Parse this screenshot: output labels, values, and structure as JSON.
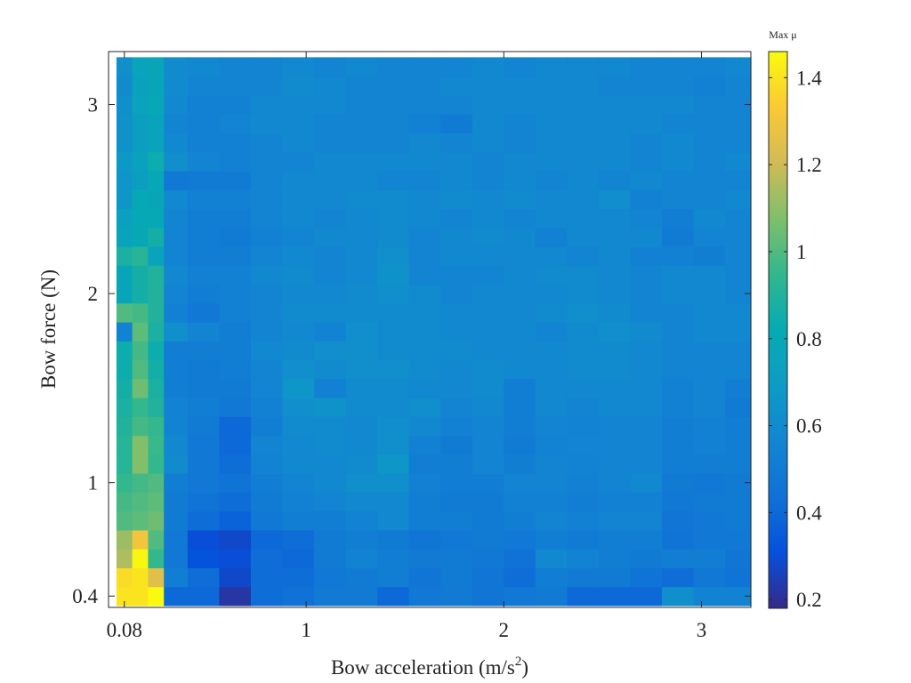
{
  "chart_data": {
    "type": "heatmap",
    "title": "",
    "xlabel": "Bow acceleration (m/s^2)",
    "ylabel": "Bow force (N)",
    "x_ticks": [
      {
        "value": 0.08,
        "label": "0.08"
      },
      {
        "value": 1,
        "label": "1"
      },
      {
        "value": 2,
        "label": "2"
      },
      {
        "value": 3,
        "label": "3"
      }
    ],
    "y_ticks": [
      {
        "value": 0.4,
        "label": "0.4"
      },
      {
        "value": 1,
        "label": "1"
      },
      {
        "value": 2,
        "label": "2"
      },
      {
        "value": 3,
        "label": "3"
      }
    ],
    "xlim": [
      0.0,
      3.25
    ],
    "ylim": [
      0.34,
      3.28
    ],
    "colorbar": {
      "label": "Max μ",
      "min": 0.18,
      "max": 1.46,
      "ticks": [
        {
          "value": 0.2,
          "label": "0.2"
        },
        {
          "value": 0.4,
          "label": "0.4"
        },
        {
          "value": 0.6,
          "label": "0.6"
        },
        {
          "value": 0.8,
          "label": "0.8"
        },
        {
          "value": 1.0,
          "label": "1"
        },
        {
          "value": 1.2,
          "label": "1.2"
        },
        {
          "value": 1.4,
          "label": "1.4"
        }
      ],
      "colormap": "parula"
    },
    "x": [
      0.08,
      0.16,
      0.24,
      0.32,
      0.48,
      0.64,
      0.8,
      0.96,
      1.12,
      1.28,
      1.44,
      1.6,
      1.76,
      1.92,
      2.08,
      2.24,
      2.4,
      2.56,
      2.72,
      2.88,
      3.04,
      3.2
    ],
    "y": [
      0.4,
      0.5,
      0.6,
      0.7,
      0.8,
      0.9,
      1.0,
      1.1,
      1.2,
      1.3,
      1.4,
      1.5,
      1.6,
      1.7,
      1.8,
      1.9,
      2.0,
      2.1,
      2.2,
      2.3,
      2.4,
      2.5,
      2.6,
      2.7,
      2.8,
      2.9,
      3.0,
      3.1,
      3.2
    ],
    "z": [
      [
        1.4,
        1.4,
        1.46,
        0.4,
        0.4,
        0.22,
        0.42,
        0.44,
        0.5,
        0.5,
        0.4,
        0.48,
        0.5,
        0.46,
        0.48,
        0.5,
        0.4,
        0.4,
        0.4,
        0.62,
        0.55,
        0.55
      ],
      [
        1.38,
        1.4,
        1.25,
        0.52,
        0.42,
        0.28,
        0.42,
        0.42,
        0.48,
        0.5,
        0.52,
        0.46,
        0.5,
        0.46,
        0.42,
        0.52,
        0.5,
        0.5,
        0.45,
        0.42,
        0.48,
        0.45
      ],
      [
        1.15,
        1.45,
        0.95,
        0.48,
        0.32,
        0.3,
        0.42,
        0.4,
        0.5,
        0.55,
        0.52,
        0.5,
        0.5,
        0.48,
        0.44,
        0.58,
        0.55,
        0.52,
        0.5,
        0.52,
        0.52,
        0.46
      ],
      [
        1.12,
        1.3,
        1.0,
        0.48,
        0.3,
        0.28,
        0.4,
        0.42,
        0.5,
        0.52,
        0.5,
        0.46,
        0.48,
        0.5,
        0.48,
        0.52,
        0.5,
        0.52,
        0.52,
        0.45,
        0.48,
        0.48
      ],
      [
        1.0,
        1.02,
        1.05,
        0.5,
        0.42,
        0.38,
        0.48,
        0.52,
        0.52,
        0.55,
        0.58,
        0.52,
        0.52,
        0.5,
        0.52,
        0.56,
        0.54,
        0.56,
        0.56,
        0.46,
        0.48,
        0.5
      ],
      [
        0.98,
        1.0,
        1.02,
        0.5,
        0.45,
        0.42,
        0.5,
        0.54,
        0.56,
        0.58,
        0.58,
        0.52,
        0.5,
        0.5,
        0.54,
        0.54,
        0.52,
        0.54,
        0.54,
        0.48,
        0.5,
        0.5
      ],
      [
        0.95,
        0.98,
        1.0,
        0.52,
        0.48,
        0.45,
        0.52,
        0.56,
        0.58,
        0.62,
        0.62,
        0.54,
        0.52,
        0.52,
        0.56,
        0.56,
        0.54,
        0.56,
        0.58,
        0.5,
        0.48,
        0.5
      ],
      [
        0.92,
        1.08,
        0.95,
        0.6,
        0.48,
        0.42,
        0.55,
        0.58,
        0.58,
        0.6,
        0.66,
        0.52,
        0.52,
        0.56,
        0.52,
        0.56,
        0.55,
        0.56,
        0.56,
        0.52,
        0.52,
        0.52
      ],
      [
        0.92,
        1.08,
        0.96,
        0.58,
        0.48,
        0.4,
        0.56,
        0.58,
        0.6,
        0.58,
        0.62,
        0.54,
        0.5,
        0.56,
        0.5,
        0.55,
        0.56,
        0.56,
        0.56,
        0.52,
        0.54,
        0.52
      ],
      [
        0.9,
        0.98,
        0.95,
        0.55,
        0.5,
        0.4,
        0.52,
        0.6,
        0.6,
        0.58,
        0.62,
        0.58,
        0.54,
        0.56,
        0.52,
        0.56,
        0.55,
        0.56,
        0.56,
        0.52,
        0.54,
        0.52
      ],
      [
        0.88,
        0.95,
        0.9,
        0.55,
        0.52,
        0.48,
        0.54,
        0.62,
        0.64,
        0.6,
        0.6,
        0.62,
        0.56,
        0.58,
        0.52,
        0.58,
        0.56,
        0.58,
        0.58,
        0.54,
        0.56,
        0.5
      ],
      [
        0.86,
        1.05,
        0.88,
        0.52,
        0.5,
        0.5,
        0.56,
        0.66,
        0.54,
        0.6,
        0.6,
        0.58,
        0.58,
        0.6,
        0.52,
        0.58,
        0.58,
        0.58,
        0.58,
        0.54,
        0.56,
        0.52
      ],
      [
        0.84,
        1.0,
        0.86,
        0.52,
        0.5,
        0.52,
        0.56,
        0.62,
        0.6,
        0.62,
        0.62,
        0.6,
        0.58,
        0.6,
        0.58,
        0.58,
        0.6,
        0.6,
        0.58,
        0.56,
        0.56,
        0.56
      ],
      [
        0.84,
        0.98,
        0.84,
        0.52,
        0.52,
        0.52,
        0.58,
        0.6,
        0.62,
        0.62,
        0.6,
        0.6,
        0.6,
        0.58,
        0.58,
        0.58,
        0.6,
        0.6,
        0.58,
        0.56,
        0.56,
        0.56
      ],
      [
        0.55,
        1.02,
        0.88,
        0.62,
        0.56,
        0.52,
        0.56,
        0.58,
        0.55,
        0.62,
        0.6,
        0.6,
        0.58,
        0.58,
        0.58,
        0.56,
        0.6,
        0.62,
        0.6,
        0.56,
        0.58,
        0.58
      ],
      [
        1.0,
        0.98,
        0.9,
        0.54,
        0.48,
        0.54,
        0.56,
        0.6,
        0.6,
        0.6,
        0.6,
        0.6,
        0.58,
        0.58,
        0.58,
        0.6,
        0.62,
        0.6,
        0.56,
        0.56,
        0.58,
        0.58
      ],
      [
        0.78,
        0.86,
        0.9,
        0.56,
        0.52,
        0.54,
        0.56,
        0.58,
        0.58,
        0.6,
        0.62,
        0.6,
        0.56,
        0.58,
        0.58,
        0.58,
        0.6,
        0.58,
        0.56,
        0.58,
        0.58,
        0.56
      ],
      [
        0.78,
        0.86,
        0.9,
        0.58,
        0.54,
        0.54,
        0.58,
        0.6,
        0.56,
        0.58,
        0.64,
        0.56,
        0.56,
        0.56,
        0.58,
        0.6,
        0.6,
        0.58,
        0.56,
        0.58,
        0.58,
        0.56
      ],
      [
        0.88,
        0.92,
        0.76,
        0.56,
        0.52,
        0.52,
        0.56,
        0.58,
        0.56,
        0.58,
        0.62,
        0.56,
        0.58,
        0.58,
        0.58,
        0.58,
        0.56,
        0.58,
        0.54,
        0.54,
        0.52,
        0.56
      ],
      [
        0.76,
        0.8,
        0.86,
        0.56,
        0.52,
        0.5,
        0.54,
        0.56,
        0.58,
        0.58,
        0.6,
        0.56,
        0.58,
        0.6,
        0.58,
        0.54,
        0.58,
        0.58,
        0.58,
        0.5,
        0.56,
        0.56
      ],
      [
        0.74,
        0.8,
        0.8,
        0.56,
        0.52,
        0.52,
        0.56,
        0.58,
        0.56,
        0.58,
        0.6,
        0.58,
        0.56,
        0.58,
        0.56,
        0.58,
        0.58,
        0.58,
        0.56,
        0.52,
        0.58,
        0.56
      ],
      [
        0.66,
        0.8,
        0.78,
        0.58,
        0.54,
        0.54,
        0.56,
        0.58,
        0.58,
        0.6,
        0.6,
        0.58,
        0.6,
        0.58,
        0.6,
        0.58,
        0.58,
        0.62,
        0.54,
        0.56,
        0.56,
        0.58
      ],
      [
        0.66,
        0.72,
        0.8,
        0.48,
        0.5,
        0.5,
        0.56,
        0.58,
        0.58,
        0.58,
        0.56,
        0.56,
        0.58,
        0.56,
        0.58,
        0.56,
        0.58,
        0.56,
        0.58,
        0.56,
        0.56,
        0.56
      ],
      [
        0.68,
        0.74,
        0.84,
        0.62,
        0.56,
        0.54,
        0.56,
        0.56,
        0.58,
        0.58,
        0.58,
        0.58,
        0.58,
        0.56,
        0.58,
        0.58,
        0.58,
        0.58,
        0.56,
        0.58,
        0.56,
        0.58
      ],
      [
        0.64,
        0.72,
        0.76,
        0.58,
        0.54,
        0.54,
        0.56,
        0.58,
        0.56,
        0.56,
        0.56,
        0.58,
        0.56,
        0.58,
        0.56,
        0.58,
        0.58,
        0.58,
        0.56,
        0.58,
        0.56,
        0.56
      ],
      [
        0.64,
        0.72,
        0.76,
        0.56,
        0.54,
        0.56,
        0.58,
        0.58,
        0.56,
        0.56,
        0.56,
        0.54,
        0.5,
        0.58,
        0.56,
        0.58,
        0.58,
        0.58,
        0.58,
        0.56,
        0.56,
        0.56
      ],
      [
        0.62,
        0.76,
        0.8,
        0.58,
        0.54,
        0.54,
        0.58,
        0.58,
        0.58,
        0.56,
        0.56,
        0.56,
        0.56,
        0.58,
        0.58,
        0.58,
        0.58,
        0.58,
        0.58,
        0.58,
        0.56,
        0.56
      ],
      [
        0.6,
        0.74,
        0.78,
        0.6,
        0.56,
        0.56,
        0.56,
        0.6,
        0.58,
        0.56,
        0.56,
        0.56,
        0.58,
        0.58,
        0.58,
        0.58,
        0.58,
        0.56,
        0.56,
        0.56,
        0.54,
        0.56
      ],
      [
        0.62,
        0.76,
        0.78,
        0.6,
        0.58,
        0.56,
        0.56,
        0.58,
        0.56,
        0.58,
        0.56,
        0.56,
        0.56,
        0.58,
        0.56,
        0.58,
        0.58,
        0.58,
        0.56,
        0.56,
        0.56,
        0.58
      ]
    ]
  }
}
